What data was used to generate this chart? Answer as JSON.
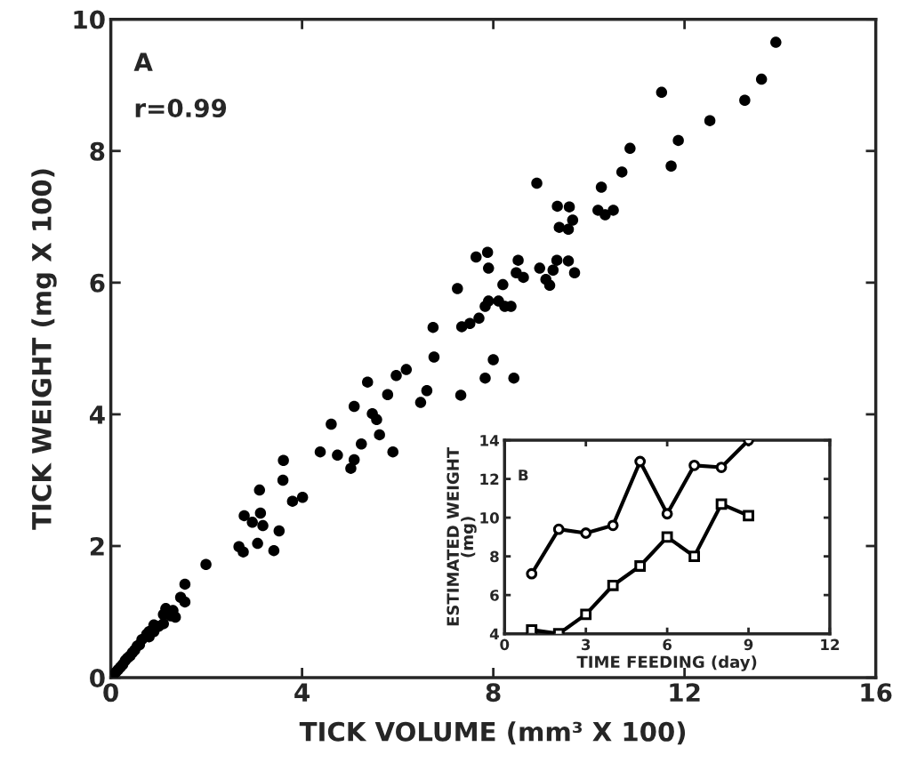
{
  "chart_data": [
    {
      "type": "scatter",
      "xlabel": "TICK VOLUME (mm³ X 100)",
      "ylabel": "TICK WEIGHT (mg X 100)",
      "annotations": [
        "A",
        "r=0.99"
      ],
      "series": [
        {
          "color": "#000000",
          "marker": "circle",
          "x": [
            13.91,
            13.61,
            13.26,
            11.52,
            12.53,
            11.87,
            11.72,
            10.86,
            10.69,
            10.26,
            10.19,
            10.34,
            10.51,
            8.91,
            9.34,
            9.59,
            9.66,
            9.38,
            9.57,
            7.64,
            7.88,
            7.9,
            8.52,
            8.48,
            8.63,
            8.97,
            9.33,
            9.57,
            9.7,
            9.25,
            9.1,
            9.18,
            8.2,
            7.25,
            7.83,
            7.9,
            8.11,
            8.24,
            8.37,
            7.7,
            7.51,
            7.34,
            6.74,
            6.76,
            8.0,
            7.83,
            8.43,
            7.32,
            6.18,
            5.97,
            6.61,
            6.48,
            5.37,
            5.79,
            5.09,
            5.47,
            5.56,
            5.62,
            5.24,
            5.9,
            4.61,
            4.38,
            4.74,
            5.09,
            5.02,
            3.61,
            3.6,
            4.01,
            3.8,
            3.11,
            2.79,
            3.13,
            2.96,
            3.18,
            3.52,
            2.68,
            2.77,
            3.07,
            3.41,
            1.99,
            1.55,
            1.46,
            1.55,
            0.05,
            0.1,
            0.15,
            0.2,
            0.25,
            0.3,
            0.35,
            0.4,
            0.45,
            0.5,
            0.55,
            0.6,
            0.65,
            0.75,
            0.8,
            0.9,
            1.1,
            1.15,
            1.25,
            1.3,
            1.35,
            0.8,
            0.9,
            1.0,
            1.1
          ],
          "values": [
            9.65,
            9.09,
            8.77,
            8.89,
            8.46,
            8.16,
            7.77,
            8.04,
            7.68,
            7.45,
            7.1,
            7.03,
            7.1,
            7.51,
            7.16,
            7.15,
            6.95,
            6.84,
            6.81,
            6.39,
            6.46,
            6.22,
            6.34,
            6.15,
            6.08,
            6.22,
            6.34,
            6.33,
            6.15,
            6.19,
            6.05,
            5.96,
            5.97,
            5.91,
            5.64,
            5.72,
            5.72,
            5.64,
            5.64,
            5.46,
            5.38,
            5.33,
            5.32,
            4.87,
            4.83,
            4.55,
            4.55,
            4.29,
            4.68,
            4.59,
            4.36,
            4.18,
            4.49,
            4.3,
            4.12,
            4.01,
            3.92,
            3.69,
            3.55,
            3.43,
            3.85,
            3.43,
            3.38,
            3.31,
            3.18,
            3.3,
            3.0,
            2.74,
            2.68,
            2.85,
            2.46,
            2.5,
            2.36,
            2.31,
            2.23,
            1.99,
            1.91,
            2.04,
            1.93,
            1.72,
            1.42,
            1.22,
            1.15,
            0.04,
            0.08,
            0.12,
            0.16,
            0.2,
            0.26,
            0.3,
            0.33,
            0.38,
            0.42,
            0.48,
            0.5,
            0.58,
            0.66,
            0.7,
            0.8,
            0.96,
            1.05,
            0.94,
            1.02,
            0.92,
            0.62,
            0.7,
            0.78,
            0.82
          ]
        }
      ],
      "xlim": [
        0,
        16
      ],
      "xticks": [
        0,
        4,
        8,
        12,
        16
      ],
      "ylim": [
        0,
        10
      ],
      "yticks": [
        0,
        2,
        4,
        6,
        8,
        10
      ],
      "grid": false,
      "legend": false
    },
    {
      "type": "line",
      "xlabel": "TIME FEEDING (day)",
      "ylabel": "ESTIMATED WEIGHT\n(mg)",
      "annotations": [
        "B"
      ],
      "x": [
        1,
        2,
        3,
        4,
        5,
        6,
        7,
        8,
        9
      ],
      "series": [
        {
          "color": "#000000",
          "marker": "circle",
          "values": [
            7.1,
            9.4,
            9.2,
            9.6,
            12.9,
            10.2,
            12.7,
            12.6,
            14.0
          ]
        },
        {
          "color": "#000000",
          "marker": "square",
          "values": [
            4.2,
            4.0,
            5.0,
            6.5,
            7.5,
            9.0,
            8.0,
            10.7,
            10.1
          ]
        }
      ],
      "xlim": [
        0,
        12
      ],
      "xticks": [
        0,
        3,
        6,
        9,
        12
      ],
      "ylim": [
        4,
        14
      ],
      "yticks": [
        4,
        6,
        8,
        10,
        12,
        14
      ],
      "grid": false,
      "legend": false
    }
  ]
}
